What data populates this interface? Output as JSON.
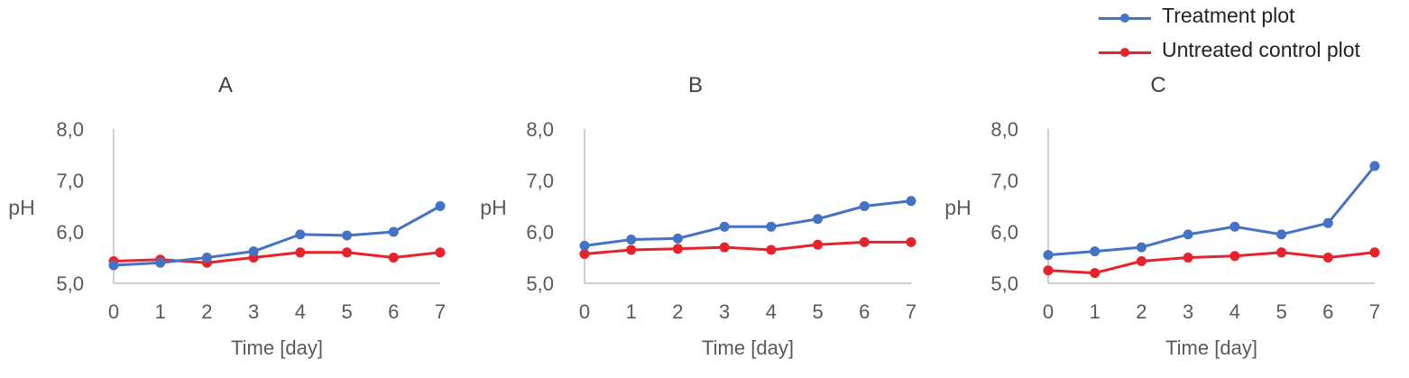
{
  "colors": {
    "treatment": "#4472C4",
    "control": "#E8222B",
    "axis": "#BFBFBF",
    "text": "#595959"
  },
  "legend": {
    "position": "top-right",
    "items": [
      {
        "label": "Treatment plot",
        "color": "#4472C4"
      },
      {
        "label": "Untreated control plot",
        "color": "#E8222B"
      }
    ]
  },
  "chart_data": [
    {
      "type": "line",
      "title": "A",
      "xlabel": "Time [day]",
      "ylabel": "pH",
      "ylim": [
        5.0,
        8.0
      ],
      "yticks": [
        "5,0",
        "6,0",
        "7,0",
        "8,0"
      ],
      "categories": [
        "0",
        "1",
        "2",
        "3",
        "4",
        "5",
        "6",
        "7"
      ],
      "grid": false,
      "series": [
        {
          "name": "Treatment plot",
          "color": "#4472C4",
          "values": [
            5.35,
            5.4,
            5.5,
            5.62,
            5.95,
            5.93,
            6.0,
            6.5
          ]
        },
        {
          "name": "Untreated control plot",
          "color": "#E8222B",
          "values": [
            5.43,
            5.46,
            5.4,
            5.5,
            5.6,
            5.6,
            5.5,
            5.6
          ]
        }
      ]
    },
    {
      "type": "line",
      "title": "B",
      "xlabel": "Time [day]",
      "ylabel": "pH",
      "ylim": [
        5.0,
        8.0
      ],
      "yticks": [
        "5,0",
        "6,0",
        "7,0",
        "8,0"
      ],
      "categories": [
        "0",
        "1",
        "2",
        "3",
        "4",
        "5",
        "6",
        "7"
      ],
      "grid": false,
      "series": [
        {
          "name": "Treatment plot",
          "color": "#4472C4",
          "values": [
            5.73,
            5.85,
            5.87,
            6.1,
            6.1,
            6.25,
            6.5,
            6.6
          ]
        },
        {
          "name": "Untreated control plot",
          "color": "#E8222B",
          "values": [
            5.57,
            5.65,
            5.67,
            5.7,
            5.65,
            5.75,
            5.8,
            5.8
          ]
        }
      ]
    },
    {
      "type": "line",
      "title": "C",
      "xlabel": "Time [day]",
      "ylabel": "pH",
      "ylim": [
        5.0,
        8.0
      ],
      "yticks": [
        "5,0",
        "6,0",
        "7,0",
        "8,0"
      ],
      "categories": [
        "0",
        "1",
        "2",
        "3",
        "4",
        "5",
        "6",
        "7"
      ],
      "grid": false,
      "series": [
        {
          "name": "Treatment plot",
          "color": "#4472C4",
          "values": [
            5.55,
            5.62,
            5.7,
            5.95,
            6.1,
            5.95,
            6.17,
            7.28
          ]
        },
        {
          "name": "Untreated control plot",
          "color": "#E8222B",
          "values": [
            5.25,
            5.2,
            5.43,
            5.5,
            5.53,
            5.6,
            5.5,
            5.6
          ]
        }
      ]
    }
  ]
}
